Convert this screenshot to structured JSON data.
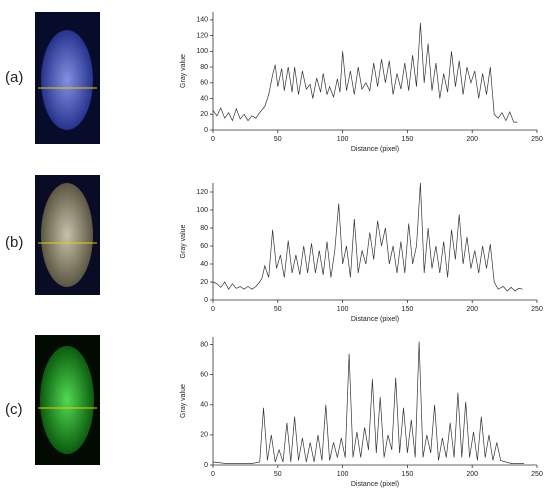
{
  "chart_data": [
    {
      "type": "line",
      "panel_label": "(a)",
      "xlabel": "Distance (pixel)",
      "ylabel": "Gray value",
      "xlim": [
        0,
        250
      ],
      "ylim": [
        0,
        150
      ],
      "xticks": [
        0,
        50,
        100,
        150,
        200,
        250
      ],
      "yticks": [
        0,
        20,
        40,
        60,
        80,
        100,
        120,
        140
      ],
      "x": [
        0,
        3,
        6,
        9,
        12,
        15,
        18,
        21,
        24,
        27,
        30,
        33,
        36,
        40,
        43,
        46,
        48,
        50,
        53,
        55,
        58,
        61,
        63,
        66,
        69,
        72,
        75,
        77,
        80,
        83,
        85,
        88,
        90,
        93,
        96,
        98,
        100,
        103,
        106,
        109,
        112,
        115,
        118,
        121,
        124,
        127,
        130,
        133,
        136,
        139,
        142,
        145,
        148,
        151,
        154,
        157,
        160,
        163,
        166,
        169,
        172,
        175,
        178,
        181,
        184,
        187,
        190,
        193,
        196,
        199,
        202,
        205,
        208,
        211,
        214,
        217,
        220,
        223,
        226,
        229,
        232,
        235
      ],
      "series": [
        {
          "color": "#333333",
          "values": [
            25,
            18,
            28,
            15,
            22,
            12,
            27,
            14,
            20,
            12,
            18,
            15,
            22,
            30,
            45,
            70,
            83,
            55,
            78,
            50,
            80,
            48,
            80,
            45,
            75,
            52,
            58,
            40,
            66,
            48,
            72,
            45,
            55,
            42,
            65,
            48,
            100,
            50,
            75,
            45,
            80,
            52,
            60,
            50,
            85,
            55,
            90,
            60,
            88,
            45,
            72,
            52,
            85,
            50,
            95,
            55,
            136,
            60,
            110,
            50,
            85,
            40,
            72,
            48,
            100,
            55,
            88,
            45,
            80,
            60,
            75,
            40,
            72,
            45,
            80,
            20,
            15,
            22,
            12,
            23,
            10,
            10
          ]
        }
      ]
    },
    {
      "type": "line",
      "panel_label": "(b)",
      "xlabel": "Distance (pixel)",
      "ylabel": "Gray value",
      "xlim": [
        0,
        250
      ],
      "ylim": [
        0,
        130
      ],
      "xticks": [
        0,
        50,
        100,
        150,
        200,
        250
      ],
      "yticks": [
        0,
        20,
        40,
        60,
        80,
        100,
        120
      ],
      "x": [
        0,
        3,
        6,
        9,
        12,
        15,
        18,
        21,
        24,
        27,
        30,
        33,
        36,
        38,
        40,
        43,
        46,
        49,
        52,
        55,
        58,
        61,
        64,
        67,
        70,
        73,
        76,
        79,
        82,
        85,
        88,
        91,
        94,
        97,
        100,
        103,
        106,
        109,
        112,
        115,
        118,
        121,
        124,
        127,
        130,
        133,
        136,
        139,
        142,
        145,
        148,
        151,
        154,
        157,
        160,
        163,
        166,
        169,
        172,
        175,
        178,
        181,
        184,
        187,
        190,
        193,
        196,
        199,
        202,
        205,
        208,
        211,
        214,
        217,
        220,
        224,
        227,
        230,
        233,
        236,
        239
      ],
      "series": [
        {
          "color": "#333333",
          "values": [
            20,
            18,
            14,
            20,
            12,
            18,
            13,
            15,
            12,
            15,
            12,
            15,
            20,
            25,
            38,
            25,
            78,
            35,
            50,
            25,
            66,
            30,
            50,
            28,
            60,
            30,
            63,
            30,
            55,
            28,
            65,
            25,
            55,
            107,
            40,
            60,
            25,
            90,
            30,
            55,
            40,
            75,
            45,
            88,
            60,
            80,
            40,
            60,
            30,
            65,
            30,
            85,
            40,
            60,
            130,
            30,
            80,
            35,
            60,
            30,
            65,
            25,
            78,
            45,
            95,
            40,
            70,
            35,
            55,
            30,
            60,
            35,
            62,
            20,
            12,
            15,
            10,
            14,
            10,
            13,
            12
          ]
        }
      ]
    },
    {
      "type": "line",
      "panel_label": "(c)",
      "xlabel": "Distance (pixel)",
      "ylabel": "Gray value",
      "xlim": [
        0,
        250
      ],
      "ylim": [
        0,
        85
      ],
      "xticks": [
        0,
        50,
        100,
        150,
        200,
        250
      ],
      "yticks": [
        0,
        20,
        40,
        60,
        80
      ],
      "x": [
        0,
        10,
        20,
        30,
        36,
        39,
        42,
        45,
        48,
        51,
        54,
        57,
        60,
        63,
        66,
        69,
        72,
        75,
        78,
        81,
        84,
        87,
        90,
        93,
        96,
        99,
        102,
        105,
        108,
        111,
        114,
        117,
        120,
        123,
        126,
        129,
        132,
        135,
        138,
        141,
        144,
        147,
        150,
        153,
        156,
        159,
        162,
        165,
        168,
        171,
        174,
        177,
        180,
        183,
        186,
        189,
        192,
        195,
        198,
        201,
        204,
        207,
        210,
        213,
        216,
        219,
        222,
        226,
        230,
        240
      ],
      "series": [
        {
          "color": "#333333",
          "values": [
            2,
            1,
            1,
            1,
            2,
            38,
            3,
            20,
            2,
            10,
            2,
            28,
            2,
            32,
            3,
            18,
            2,
            15,
            2,
            20,
            3,
            40,
            3,
            15,
            5,
            18,
            5,
            74,
            5,
            22,
            5,
            25,
            10,
            57,
            8,
            45,
            5,
            20,
            10,
            58,
            8,
            38,
            8,
            30,
            5,
            82,
            5,
            20,
            8,
            40,
            3,
            18,
            5,
            28,
            5,
            48,
            5,
            42,
            5,
            22,
            3,
            32,
            5,
            20,
            3,
            15,
            3,
            2,
            1,
            1
          ]
        }
      ]
    }
  ]
}
